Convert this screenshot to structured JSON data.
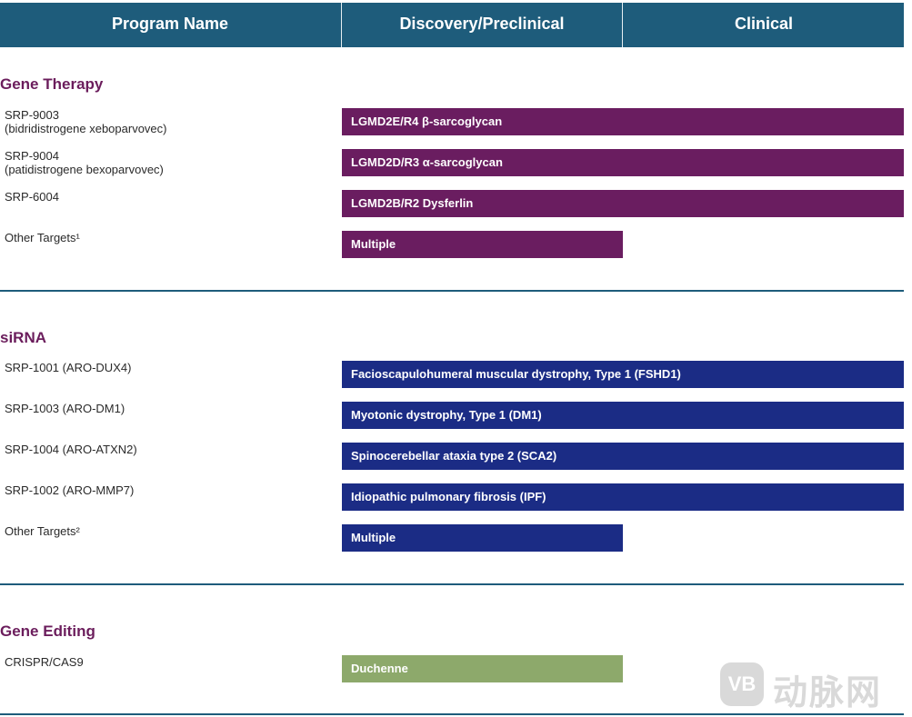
{
  "header": {
    "col_program": "Program Name",
    "col_discovery": "Discovery/Preclinical",
    "col_clinical": "Clinical"
  },
  "sections": {
    "gene_therapy": {
      "title": "Gene Therapy",
      "rows": [
        {
          "name": "SRP-9003",
          "sub": "(bidridistrogene xeboparvovec)",
          "bar": "LGMD2E/R4 β-sarcoglycan"
        },
        {
          "name": "SRP-9004",
          "sub": "(patidistrogene bexoparvovec)",
          "bar": "LGMD2D/R3 α-sarcoglycan"
        },
        {
          "name": "SRP-6004",
          "sub": "",
          "bar": "LGMD2B/R2 Dysferlin"
        },
        {
          "name": "Other Targets¹",
          "sub": "",
          "bar": "Multiple"
        }
      ]
    },
    "sirna": {
      "title": "siRNA",
      "rows": [
        {
          "name": "SRP-1001 (ARO-DUX4)",
          "bar": "Facioscapulohumeral muscular dystrophy, Type 1 (FSHD1)"
        },
        {
          "name": "SRP-1003 (ARO-DM1)",
          "bar": "Myotonic dystrophy, Type 1 (DM1)"
        },
        {
          "name": "SRP-1004 (ARO-ATXN2)",
          "bar": "Spinocerebellar ataxia type 2 (SCA2)"
        },
        {
          "name": "SRP-1002 (ARO-MMP7)",
          "bar": "Idiopathic pulmonary fibrosis (IPF)"
        },
        {
          "name": "Other Targets²",
          "bar": "Multiple"
        }
      ]
    },
    "gene_editing": {
      "title": "Gene Editing",
      "rows": [
        {
          "name": "CRISPR/CAS9",
          "bar": "Duchenne"
        }
      ]
    }
  },
  "watermark": {
    "logo_text": "VB",
    "text": "动脉网"
  },
  "colors": {
    "header": "#1e5c7b",
    "gene_therapy_bar": "#6a1d60",
    "sirna_bar": "#1b2c85",
    "gene_editing_bar": "#8da96b",
    "section_title": "#6b1d5c"
  }
}
